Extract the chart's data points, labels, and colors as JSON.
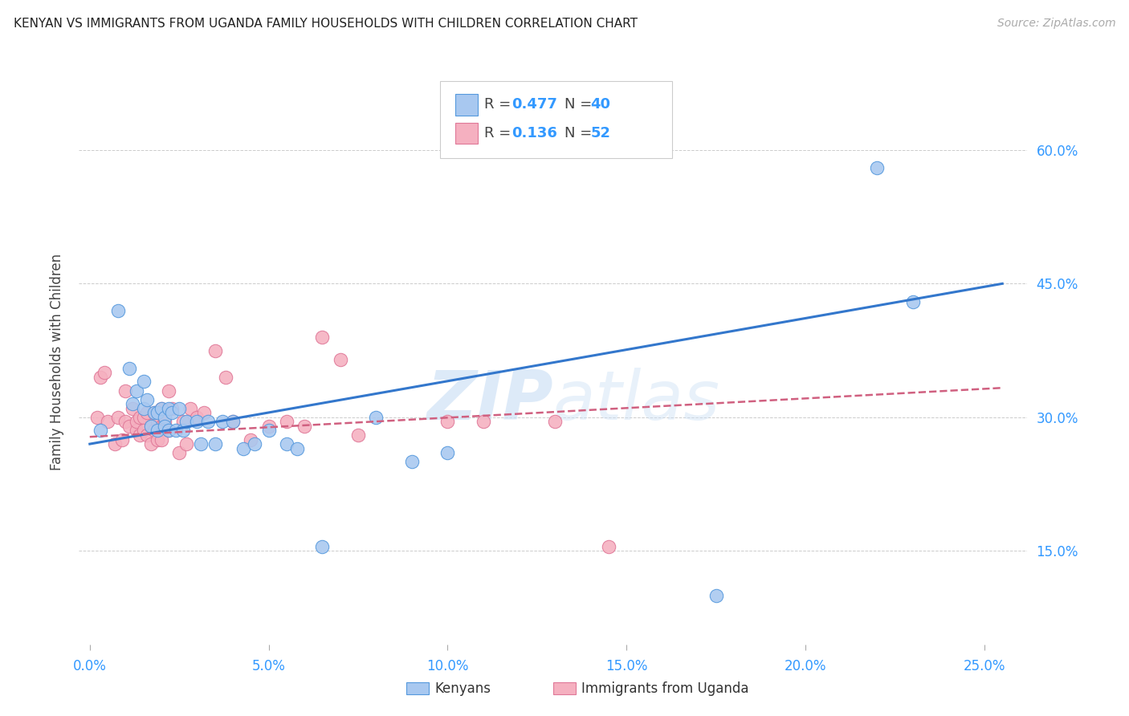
{
  "title": "KENYAN VS IMMIGRANTS FROM UGANDA FAMILY HOUSEHOLDS WITH CHILDREN CORRELATION CHART",
  "source": "Source: ZipAtlas.com",
  "xlim": [
    -0.003,
    0.262
  ],
  "ylim": [
    0.045,
    0.68
  ],
  "xtick_vals": [
    0.0,
    0.05,
    0.1,
    0.15,
    0.2,
    0.25
  ],
  "xtick_labs": [
    "0.0%",
    "5.0%",
    "10.0%",
    "15.0%",
    "20.0%",
    "25.0%"
  ],
  "ytick_vals": [
    0.15,
    0.3,
    0.45,
    0.6
  ],
  "ytick_labs": [
    "15.0%",
    "30.0%",
    "45.0%",
    "60.0%"
  ],
  "blue_dot_color": "#a8c8f0",
  "blue_edge_color": "#5599dd",
  "blue_line_color": "#3377cc",
  "pink_dot_color": "#f5b0c0",
  "pink_edge_color": "#e07898",
  "pink_line_color": "#d06080",
  "label_color": "#3399ff",
  "text_color": "#444444",
  "grid_color": "#cccccc",
  "watermark_color": "#cce0f5",
  "ylabel": "Family Households with Children",
  "blue_R": "0.477",
  "blue_N": "40",
  "pink_R": "0.136",
  "pink_N": "52",
  "blue_x": [
    0.003,
    0.008,
    0.011,
    0.012,
    0.013,
    0.015,
    0.015,
    0.016,
    0.017,
    0.018,
    0.019,
    0.019,
    0.02,
    0.021,
    0.021,
    0.022,
    0.022,
    0.023,
    0.024,
    0.025,
    0.026,
    0.027,
    0.03,
    0.031,
    0.033,
    0.035,
    0.037,
    0.04,
    0.043,
    0.046,
    0.05,
    0.055,
    0.058,
    0.065,
    0.08,
    0.09,
    0.1,
    0.175,
    0.22,
    0.23
  ],
  "blue_y": [
    0.285,
    0.42,
    0.355,
    0.315,
    0.33,
    0.34,
    0.31,
    0.32,
    0.29,
    0.305,
    0.305,
    0.285,
    0.31,
    0.3,
    0.29,
    0.31,
    0.285,
    0.305,
    0.285,
    0.31,
    0.285,
    0.295,
    0.295,
    0.27,
    0.295,
    0.27,
    0.295,
    0.295,
    0.265,
    0.27,
    0.285,
    0.27,
    0.265,
    0.155,
    0.3,
    0.25,
    0.26,
    0.1,
    0.58,
    0.43
  ],
  "pink_x": [
    0.002,
    0.003,
    0.004,
    0.005,
    0.007,
    0.008,
    0.009,
    0.01,
    0.01,
    0.011,
    0.012,
    0.013,
    0.013,
    0.014,
    0.014,
    0.015,
    0.015,
    0.016,
    0.016,
    0.017,
    0.017,
    0.018,
    0.018,
    0.019,
    0.019,
    0.02,
    0.02,
    0.02,
    0.021,
    0.022,
    0.022,
    0.023,
    0.025,
    0.026,
    0.027,
    0.028,
    0.03,
    0.032,
    0.035,
    0.038,
    0.04,
    0.045,
    0.05,
    0.055,
    0.06,
    0.065,
    0.07,
    0.075,
    0.1,
    0.11,
    0.13,
    0.145
  ],
  "pink_y": [
    0.3,
    0.345,
    0.35,
    0.295,
    0.27,
    0.3,
    0.275,
    0.33,
    0.295,
    0.29,
    0.31,
    0.285,
    0.295,
    0.3,
    0.28,
    0.3,
    0.285,
    0.305,
    0.28,
    0.29,
    0.27,
    0.305,
    0.285,
    0.295,
    0.275,
    0.31,
    0.29,
    0.275,
    0.295,
    0.33,
    0.285,
    0.31,
    0.26,
    0.295,
    0.27,
    0.31,
    0.3,
    0.305,
    0.375,
    0.345,
    0.295,
    0.275,
    0.29,
    0.295,
    0.29,
    0.39,
    0.365,
    0.28,
    0.295,
    0.295,
    0.295,
    0.155
  ],
  "blue_line_x0": 0.0,
  "blue_line_x1": 0.255,
  "blue_line_y0": 0.27,
  "blue_line_y1": 0.45,
  "pink_line_x0": 0.0,
  "pink_line_x1": 0.255,
  "pink_line_y0": 0.278,
  "pink_line_y1": 0.333
}
